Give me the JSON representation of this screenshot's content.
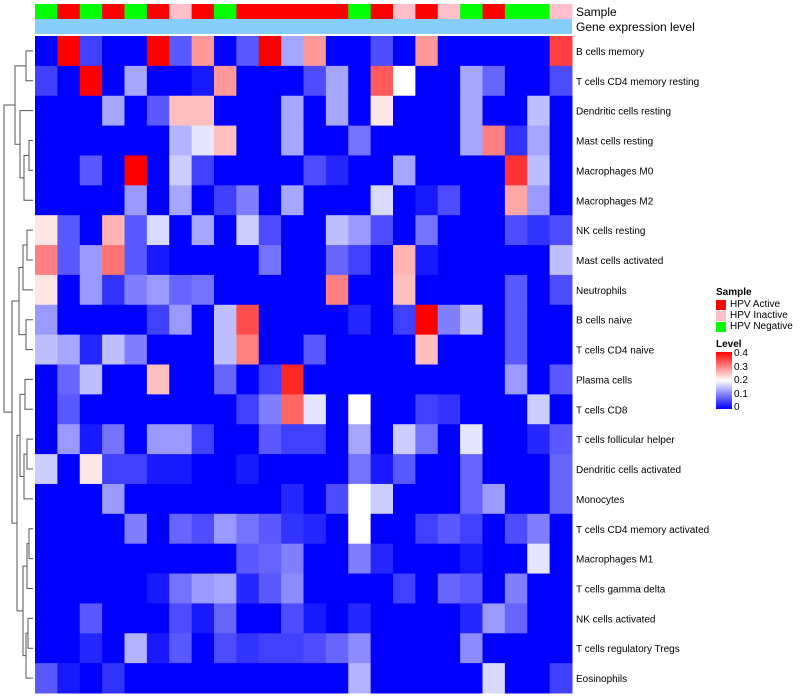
{
  "chart_data": {
    "type": "heatmap",
    "annotation_labels": [
      "Sample",
      "Gene expression level"
    ],
    "row_labels": [
      "B cells memory",
      "T cells CD4 memory resting",
      "Dendritic cells resting",
      "Mast cells resting",
      "Macrophages M0",
      "Macrophages M2",
      "NK cells resting",
      "Mast cells activated",
      "Neutrophils",
      "B cells naive",
      "T cells CD4 naive",
      "Plasma cells",
      "T cells CD8",
      "T cells follicular helper",
      "Dendritic cells activated",
      "Monocytes",
      "T cells CD4 memory activated",
      "Macrophages M1",
      "T cells gamma delta",
      "NK cells activated",
      "T cells regulatory  Tregs",
      "Eosinophils"
    ],
    "sample_groups": [
      "HPV Negative",
      "HPV Active",
      "HPV Negative",
      "HPV Active",
      "HPV Negative",
      "HPV Active",
      "HPV Inactive",
      "HPV Active",
      "HPV Negative",
      "HPV Active",
      "HPV Active",
      "HPV Active",
      "HPV Active",
      "HPV Active",
      "HPV Negative",
      "HPV Active",
      "HPV Inactive",
      "HPV Active",
      "HPV Inactive",
      "HPV Negative",
      "HPV Active",
      "HPV Negative",
      "HPV Negative",
      "HPV Inactive"
    ],
    "values": [
      [
        0,
        0.4,
        0.05,
        0,
        0,
        0.4,
        0.07,
        0.28,
        0,
        0.07,
        0.4,
        0.13,
        0.28,
        0,
        0,
        0.06,
        0,
        0.28,
        0,
        0,
        0,
        0,
        0,
        0.35
      ],
      [
        0.05,
        0,
        0.4,
        0,
        0.13,
        0,
        0,
        0.02,
        0.28,
        0,
        0,
        0,
        0.06,
        0.13,
        0,
        0.33,
        0.2,
        0,
        0,
        0.13,
        0.08,
        0,
        0,
        0.06
      ],
      [
        0,
        0,
        0,
        0.13,
        0,
        0.07,
        0.25,
        0.25,
        0,
        0,
        0,
        0.13,
        0,
        0.13,
        0,
        0.22,
        0,
        0,
        0,
        0.13,
        0,
        0,
        0.15,
        0
      ],
      [
        0,
        0,
        0,
        0,
        0,
        0,
        0.14,
        0.18,
        0.25,
        0,
        0,
        0.13,
        0,
        0,
        0.09,
        0,
        0,
        0,
        0,
        0.13,
        0.3,
        0.04,
        0.13,
        0
      ],
      [
        0,
        0,
        0.07,
        0,
        0.4,
        0,
        0.16,
        0.05,
        0,
        0,
        0,
        0,
        0.06,
        0.03,
        0,
        0,
        0.13,
        0,
        0,
        0,
        0,
        0.36,
        0.15,
        0
      ],
      [
        0,
        0,
        0,
        0,
        0.12,
        0,
        0.13,
        0,
        0.05,
        0.1,
        0,
        0.13,
        0,
        0,
        0,
        0.17,
        0,
        0.02,
        0.06,
        0,
        0,
        0.27,
        0.12,
        0
      ],
      [
        0.22,
        0.07,
        0,
        0.26,
        0.07,
        0.17,
        0,
        0.13,
        0,
        0.16,
        0.06,
        0,
        0,
        0.15,
        0.12,
        0.06,
        0,
        0.09,
        0,
        0,
        0,
        0.06,
        0.04,
        0.06
      ],
      [
        0.3,
        0.07,
        0.12,
        0.31,
        0.07,
        0.02,
        0,
        0,
        0,
        0,
        0.09,
        0,
        0,
        0.08,
        0.05,
        0,
        0.26,
        0.02,
        0,
        0,
        0,
        0,
        0,
        0.15
      ],
      [
        0.22,
        0,
        0.12,
        0.04,
        0.1,
        0.12,
        0.08,
        0.09,
        0,
        0,
        0,
        0,
        0,
        0.3,
        0,
        0,
        0.25,
        0,
        0,
        0,
        0,
        0.07,
        0,
        0.06
      ],
      [
        0.12,
        0,
        0,
        0,
        0,
        0.05,
        0.12,
        0,
        0.15,
        0.34,
        0,
        0,
        0,
        0,
        0.03,
        0,
        0.05,
        0.4,
        0.1,
        0.15,
        0,
        0.07,
        0,
        0
      ],
      [
        0.15,
        0.13,
        0.03,
        0.15,
        0.1,
        0,
        0,
        0,
        0.15,
        0.3,
        0,
        0,
        0.07,
        0,
        0,
        0,
        0,
        0.25,
        0,
        0,
        0,
        0.07,
        0,
        0
      ],
      [
        0,
        0.08,
        0.15,
        0,
        0,
        0.25,
        0,
        0,
        0.08,
        0,
        0.05,
        0.37,
        0,
        0,
        0,
        0,
        0,
        0,
        0,
        0,
        0,
        0.12,
        0,
        0.07
      ],
      [
        0,
        0.07,
        0,
        0,
        0,
        0,
        0,
        0,
        0,
        0.05,
        0.1,
        0.32,
        0.18,
        0,
        0.2,
        0,
        0,
        0.05,
        0.04,
        0,
        0,
        0,
        0.16,
        0
      ],
      [
        0,
        0.12,
        0.02,
        0.09,
        0,
        0.12,
        0.12,
        0.05,
        0,
        0,
        0.07,
        0.05,
        0.05,
        0,
        0.13,
        0,
        0.16,
        0.09,
        0,
        0.18,
        0,
        0,
        0.03,
        0.07
      ],
      [
        0.16,
        0,
        0.22,
        0.05,
        0.05,
        0.02,
        0.02,
        0,
        0,
        0.02,
        0,
        0,
        0,
        0,
        0.09,
        0.02,
        0.07,
        0,
        0,
        0.08,
        0,
        0,
        0,
        0.08
      ],
      [
        0,
        0,
        0,
        0.12,
        0,
        0,
        0,
        0,
        0,
        0,
        0,
        0.03,
        0,
        0.06,
        0.2,
        0.16,
        0,
        0,
        0,
        0.08,
        0.12,
        0,
        0,
        0.08
      ],
      [
        0,
        0,
        0,
        0,
        0.1,
        0,
        0.08,
        0.06,
        0.12,
        0.09,
        0.07,
        0.04,
        0.03,
        0,
        0.2,
        0,
        0,
        0.05,
        0.07,
        0.05,
        0,
        0.06,
        0.1,
        0
      ],
      [
        0,
        0,
        0,
        0,
        0,
        0,
        0,
        0,
        0,
        0.07,
        0.08,
        0.1,
        0,
        0,
        0.1,
        0.03,
        0,
        0,
        0,
        0.02,
        0,
        0,
        0.18,
        0
      ],
      [
        0,
        0,
        0,
        0,
        0,
        0.02,
        0.09,
        0.12,
        0.13,
        0.03,
        0.07,
        0.11,
        0,
        0,
        0,
        0,
        0.05,
        0,
        0.08,
        0.07,
        0,
        0.1,
        0,
        0
      ],
      [
        0,
        0,
        0.07,
        0,
        0,
        0,
        0.06,
        0.02,
        0.08,
        0,
        0,
        0.06,
        0.02,
        0,
        0.03,
        0,
        0,
        0,
        0,
        0.03,
        0.12,
        0.08,
        0,
        0
      ],
      [
        0,
        0,
        0.03,
        0,
        0.14,
        0.02,
        0.07,
        0,
        0.06,
        0.04,
        0.05,
        0.05,
        0.06,
        0.08,
        0.11,
        0,
        0,
        0,
        0,
        0.11,
        0,
        0,
        0,
        0
      ],
      [
        0.07,
        0.02,
        0,
        0.04,
        0,
        0,
        0,
        0,
        0,
        0,
        0,
        0,
        0,
        0,
        0.14,
        0,
        0,
        0,
        0,
        0,
        0.17,
        0,
        0,
        0.05
      ]
    ],
    "legend": {
      "sample_title": "Sample",
      "sample_items": [
        {
          "label": "HPV Active",
          "color": "#ff0000"
        },
        {
          "label": "HPV Inactive",
          "color": "#ffc0cb"
        },
        {
          "label": "HPV Negative",
          "color": "#00ff00"
        }
      ],
      "level_title": "Level",
      "level_ticks": [
        0.4,
        0.3,
        0.2,
        0.1,
        0
      ],
      "level_tick_labels": [
        "0.4",
        "0.3",
        "0.2",
        "0.1",
        "0"
      ],
      "color_low": "#0000ff",
      "color_mid": "#ffffff",
      "color_high": "#ff0000",
      "vmin": 0,
      "vmax": 0.4
    },
    "gene_expression_color": "#87cefa"
  }
}
